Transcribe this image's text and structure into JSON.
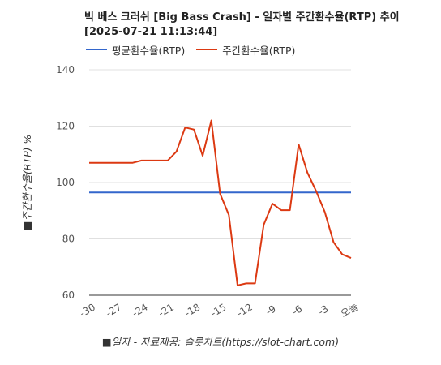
{
  "chart_data": {
    "type": "line",
    "title_line1": "빅 베스 크러쉬 [Big Bass Crash] - 일자별 주간환수율(RTP) 추이",
    "title_line2": "[2025-07-21 11:13:44]",
    "xlabel": "■일자 - 자료제공: 슬롯차트(https://slot-chart.com)",
    "ylabel": "■주간환수율(RTP) %",
    "ylim": [
      60,
      140
    ],
    "yticks": [
      "60",
      "80",
      "100",
      "120",
      "140"
    ],
    "x_tick_labels": [
      "-30",
      "-27",
      "-24",
      "-21",
      "-18",
      "-15",
      "-12",
      "-9",
      "-6",
      "-3",
      "오늘"
    ],
    "x": [
      -30,
      -29,
      -28,
      -27,
      -26,
      -25,
      -24,
      -23,
      -22,
      -21,
      -20,
      -19,
      -18,
      -17,
      -16,
      -15,
      -14,
      -13,
      -12,
      -11,
      -10,
      -9,
      -8,
      -7,
      -6,
      -5,
      -4,
      -3,
      -2,
      -1,
      0
    ],
    "series": [
      {
        "name": "평균환수율(RTP)",
        "color": "#3366cc",
        "values": [
          96.5,
          96.5,
          96.5,
          96.5,
          96.5,
          96.5,
          96.5,
          96.5,
          96.5,
          96.5,
          96.5,
          96.5,
          96.5,
          96.5,
          96.5,
          96.5,
          96.5,
          96.5,
          96.5,
          96.5,
          96.5,
          96.5,
          96.5,
          96.5,
          96.5,
          96.5,
          96.5,
          96.5,
          96.5,
          96.5,
          96.5
        ]
      },
      {
        "name": "주간환수율(RTP)",
        "color": "#dc3912",
        "values": [
          107,
          107,
          107,
          107,
          107,
          107,
          107.8,
          107.8,
          107.8,
          107.8,
          111,
          119.5,
          118.8,
          109.5,
          122,
          96,
          88.5,
          63.5,
          64.2,
          64.2,
          85,
          92.5,
          90.2,
          90.2,
          113.5,
          103.5,
          97,
          89.5,
          78.8,
          74.5,
          73.2
        ]
      }
    ],
    "grid": "horizontal",
    "legend": "top-left"
  }
}
